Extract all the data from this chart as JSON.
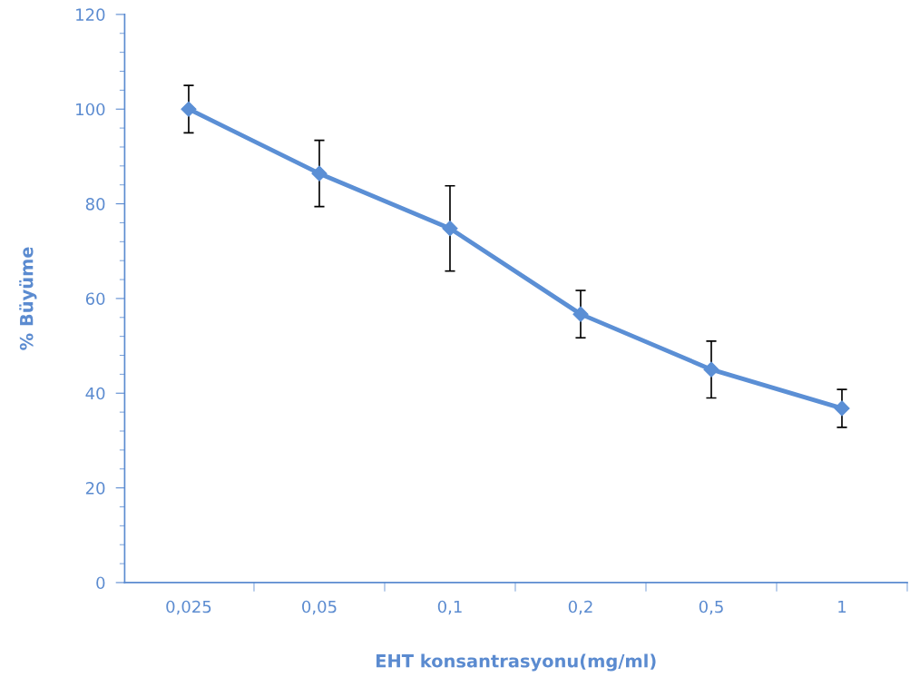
{
  "chart_data": {
    "type": "line",
    "xlabel": "EHT konsantrasyonu(mg/ml)",
    "ylabel": "% Büyüme",
    "categories": [
      "0,025",
      "0,05",
      "0,1",
      "0,2",
      "0,5",
      "1"
    ],
    "series": [
      {
        "color": "#5b8fd5",
        "values": [
          100,
          86.4,
          74.8,
          56.7,
          45.0,
          36.8
        ],
        "errors": [
          5,
          7,
          9,
          5,
          6,
          4
        ]
      }
    ],
    "ylim": [
      0,
      120
    ],
    "yticks": [
      0,
      20,
      40,
      60,
      80,
      100,
      120
    ],
    "grid": false,
    "legend": false,
    "marker": "diamond",
    "line_style": "solid"
  }
}
